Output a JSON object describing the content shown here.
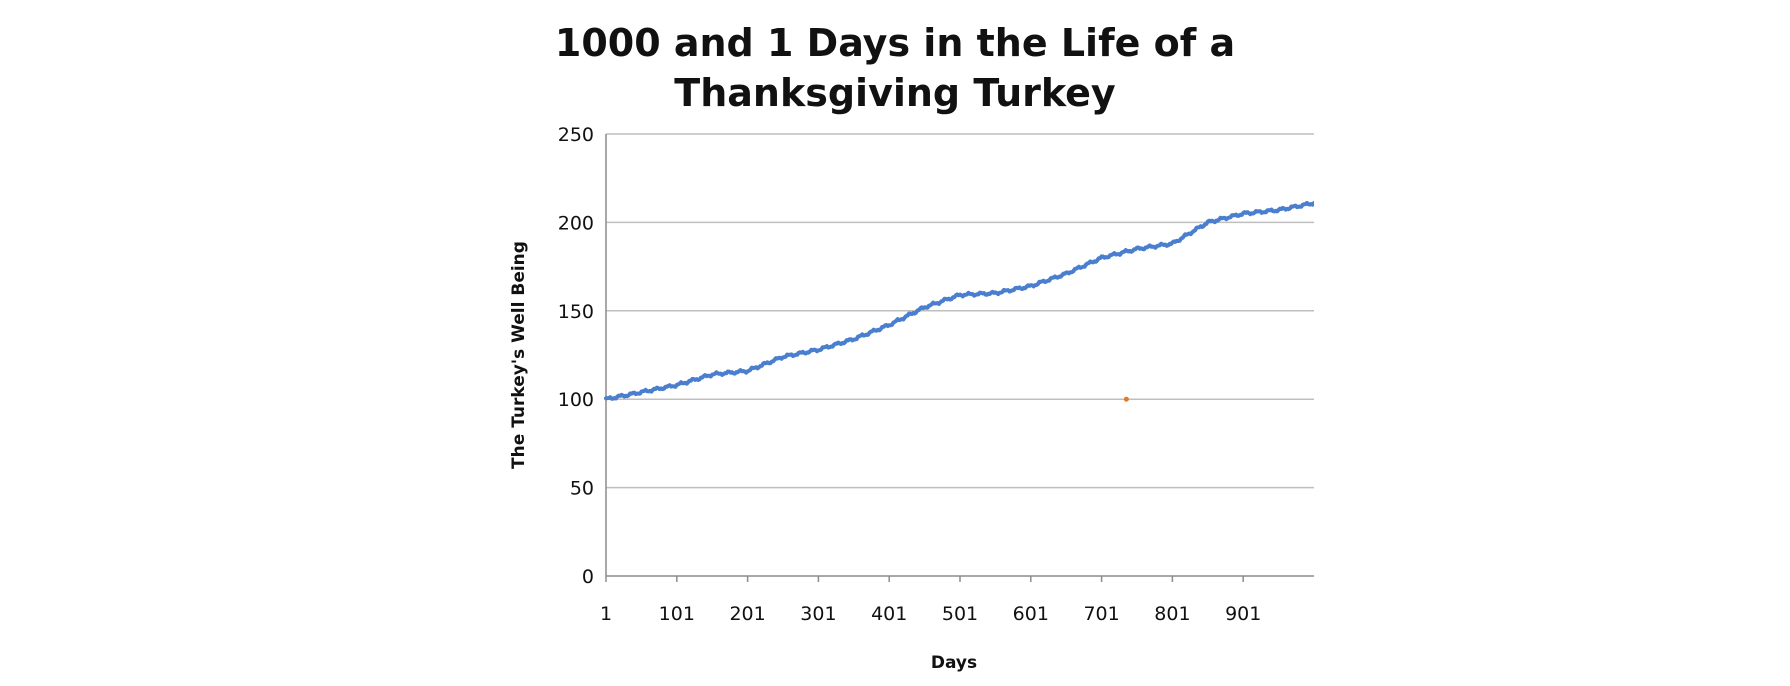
{
  "chart_data": {
    "type": "line",
    "title_lines": [
      "1000 and 1 Days in the Life of a",
      "Thanksgiving Turkey"
    ],
    "xlabel": "Days",
    "ylabel": "The Turkey's Well Being",
    "ylim": [
      0,
      250
    ],
    "yticks": [
      0,
      50,
      100,
      150,
      200,
      250
    ],
    "xlim": [
      1,
      1001
    ],
    "xticks": [
      1,
      101,
      201,
      301,
      401,
      501,
      601,
      701,
      801,
      901
    ],
    "grid": true,
    "legend": "none",
    "colors": {
      "line": "#4a7fd0",
      "grid": "#bfbfbf",
      "axis": "#8c8c8c",
      "marker": "#e07b2c"
    },
    "series": [
      {
        "x": [
          1,
          51,
          101,
          151,
          201,
          251,
          301,
          351,
          401,
          451,
          501,
          551,
          601,
          651,
          701,
          751,
          801,
          851,
          901,
          951,
          1001
        ],
        "values": [
          100,
          104,
          108,
          114,
          116,
          124,
          128,
          134,
          142,
          152,
          159,
          160,
          164,
          171,
          180,
          185,
          188,
          200,
          205,
          207,
          211
        ]
      }
    ],
    "annotation_points": [
      {
        "x": 736,
        "y": 100
      }
    ]
  }
}
